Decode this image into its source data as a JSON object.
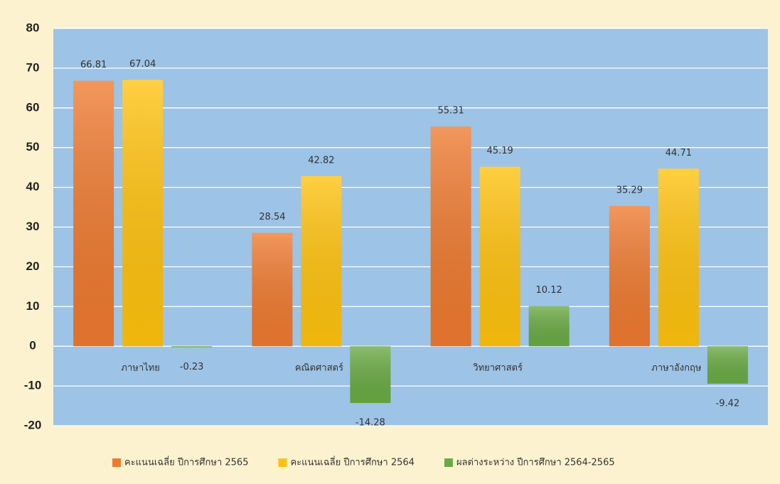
{
  "chart_data": {
    "type": "bar",
    "categories": [
      "ภาษาไทย",
      "คณิตศาสตร์",
      "วิทยาศาสตร์",
      "ภาษาอังกฤษ"
    ],
    "series": [
      {
        "name": "คะแนนเฉลี่ย ปีการศึกษา 2565",
        "color": "#ee7a30",
        "values": [
          66.81,
          28.54,
          55.31,
          35.29
        ]
      },
      {
        "name": "คะแนนเฉลี่ย ปีการศึกษา 2564",
        "color": "#ffc20e",
        "values": [
          67.04,
          42.82,
          45.19,
          44.71
        ]
      },
      {
        "name": "ผลต่างระหว่าง ปีการศึกษา 2564-2565",
        "color": "#6aaa44",
        "values": [
          -0.23,
          -14.28,
          10.12,
          -9.42
        ]
      }
    ],
    "ylim": [
      -20,
      80
    ],
    "yticks": [
      -20,
      -10,
      0,
      10,
      20,
      30,
      40,
      50,
      60,
      70,
      80
    ],
    "grid": true,
    "legend": "bottom"
  }
}
